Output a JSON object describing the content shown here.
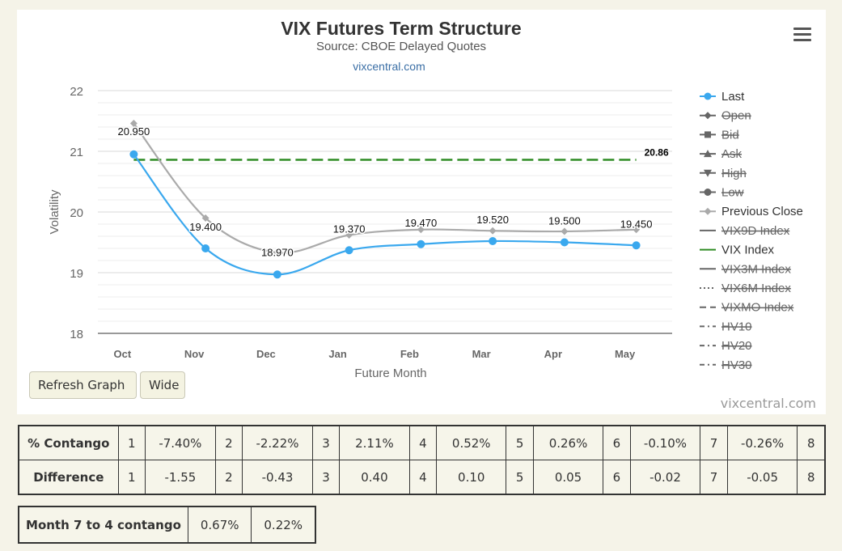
{
  "chart_data": {
    "type": "line",
    "title": "VIX Futures Term Structure",
    "subtitle": "Source: CBOE Delayed Quotes",
    "source_link": "vixcentral.com",
    "xlabel": "Future Month",
    "ylabel": "Volatility",
    "ylim": [
      18,
      22
    ],
    "yticks": [
      "18",
      "19",
      "20",
      "21",
      "22"
    ],
    "categories": [
      "Oct",
      "Nov",
      "Dec",
      "Jan",
      "Feb",
      "Mar",
      "Apr",
      "May"
    ],
    "series": [
      {
        "name": "Last",
        "values": [
          20.95,
          19.4,
          18.97,
          19.37,
          19.47,
          19.52,
          19.5,
          19.45
        ],
        "color": "#3aa8ee"
      },
      {
        "name": "Previous Close",
        "values": [
          21.46,
          19.9,
          19.33,
          19.62,
          19.71,
          19.69,
          19.68,
          19.71
        ],
        "color": "#aaaaaa"
      }
    ],
    "data_labels": [
      "20.950",
      "19.400",
      "18.970",
      "19.370",
      "19.470",
      "19.520",
      "19.500",
      "19.450"
    ],
    "reference_line": {
      "name": "VIX Index",
      "value": 20.86,
      "label": "20.86",
      "color": "#2e8b23"
    },
    "legend_position": "right",
    "grid": true
  },
  "legend": [
    {
      "label": "Last",
      "active": true,
      "symbol": "circle",
      "color": "#3aa8ee",
      "dash": "solid"
    },
    {
      "label": "Open",
      "active": false,
      "symbol": "diamond",
      "color": "#666666",
      "dash": "solid"
    },
    {
      "label": "Bid",
      "active": false,
      "symbol": "square",
      "color": "#666666",
      "dash": "solid"
    },
    {
      "label": "Ask",
      "active": false,
      "symbol": "triangle",
      "color": "#666666",
      "dash": "solid"
    },
    {
      "label": "High",
      "active": false,
      "symbol": "triangle-down",
      "color": "#666666",
      "dash": "solid"
    },
    {
      "label": "Low",
      "active": false,
      "symbol": "circle",
      "color": "#666666",
      "dash": "solid"
    },
    {
      "label": "Previous Close",
      "active": true,
      "symbol": "diamond",
      "color": "#aaaaaa",
      "dash": "solid"
    },
    {
      "label": "VIX9D Index",
      "active": false,
      "symbol": "none",
      "color": "#666666",
      "dash": "solid"
    },
    {
      "label": "VIX Index",
      "active": true,
      "symbol": "none",
      "color": "#2e8b23",
      "dash": "solid"
    },
    {
      "label": "VIX3M Index",
      "active": false,
      "symbol": "none",
      "color": "#666666",
      "dash": "solid"
    },
    {
      "label": "VIX6M Index",
      "active": false,
      "symbol": "none",
      "color": "#666666",
      "dash": "dot"
    },
    {
      "label": "VIXMO Index",
      "active": false,
      "symbol": "none",
      "color": "#666666",
      "dash": "dash"
    },
    {
      "label": "HV10",
      "active": false,
      "symbol": "none",
      "color": "#666666",
      "dash": "dashdot"
    },
    {
      "label": "HV20",
      "active": false,
      "symbol": "none",
      "color": "#666666",
      "dash": "dashdot"
    },
    {
      "label": "HV30",
      "active": false,
      "symbol": "none",
      "color": "#666666",
      "dash": "dashdot"
    }
  ],
  "buttons": {
    "refresh": "Refresh Graph",
    "wide": "Wide"
  },
  "credits": "vixcentral.com",
  "menu_icon": "hamburger-menu-icon",
  "contango_table": {
    "rows": [
      {
        "header": "% Contango",
        "cells": [
          "1",
          "-7.40%",
          "2",
          "-2.22%",
          "3",
          "2.11%",
          "4",
          "0.52%",
          "5",
          "0.26%",
          "6",
          "-0.10%",
          "7",
          "-0.26%",
          "8"
        ]
      },
      {
        "header": "Difference",
        "cells": [
          "1",
          "-1.55",
          "2",
          "-0.43",
          "3",
          "0.40",
          "4",
          "0.10",
          "5",
          "0.05",
          "6",
          "-0.02",
          "7",
          "-0.05",
          "8"
        ]
      }
    ]
  },
  "month_table": {
    "header": "Month 7 to 4 contango",
    "values": [
      "0.67%",
      "0.22%"
    ]
  }
}
